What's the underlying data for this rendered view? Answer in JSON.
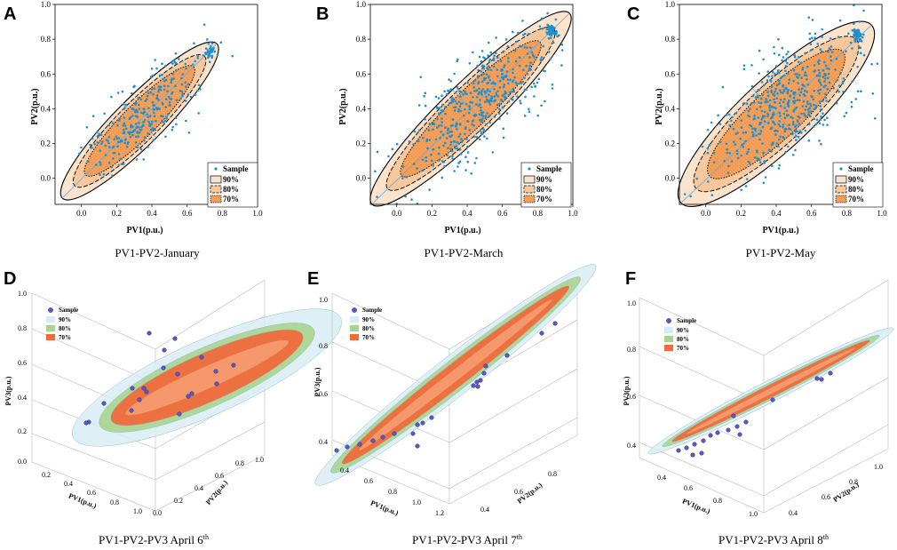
{
  "colors": {
    "sample2d": "#1f8fd0",
    "fill2d": "#f5a15a",
    "fill2dLight": "#fbe3cc",
    "axis": "#000000",
    "c3d90": "#d8ecf3",
    "c3d80": "#a9d48f",
    "c3d70": "#f06a3c",
    "sample3d": "#5757c8"
  },
  "chart_data": [
    {
      "id": "A",
      "type": "scatter",
      "panel_label": "A",
      "caption": "PV1-PV2-January",
      "xlabel": "PV1(p.u.)",
      "ylabel": "PV2(p.u.)",
      "xlim": [
        -0.15,
        1.0
      ],
      "ylim": [
        -0.15,
        1.0
      ],
      "xticks": [
        "0.0",
        "0.2",
        "0.4",
        "0.6",
        "0.8",
        "1.0"
      ],
      "yticks": [
        "0.0",
        "0.2",
        "0.4",
        "0.6",
        "0.8",
        "1.0"
      ],
      "xtick_vals": [
        0,
        0.2,
        0.4,
        0.6,
        0.8,
        1.0
      ],
      "ytick_vals": [
        0,
        0.2,
        0.4,
        0.6,
        0.8,
        1.0
      ],
      "ellipse": {
        "cx": 0.33,
        "cy": 0.33,
        "angle_deg": 45,
        "semi_major": 0.62,
        "semi_minor": 0.135
      },
      "legend": [
        "Sample",
        "90%",
        "80%",
        "70%"
      ],
      "samples": {
        "n": 320,
        "cx": 0.36,
        "cy": 0.36,
        "spread_main": 0.21,
        "spread_minor": 0.09,
        "seed": 11,
        "cluster": [
          0.73,
          0.74
        ]
      }
    },
    {
      "id": "B",
      "type": "scatter",
      "panel_label": "B",
      "caption": "PV1-PV2-March",
      "xlabel": "PV1(p.u.)",
      "ylabel": "PV2(p.u.)",
      "xlim": [
        -0.15,
        1.0
      ],
      "ylim": [
        -0.15,
        1.0
      ],
      "xticks": [
        "0.0",
        "0.2",
        "0.4",
        "0.6",
        "0.8",
        "1.0"
      ],
      "yticks": [
        "0.0",
        "0.2",
        "0.4",
        "0.6",
        "0.8",
        "1.0"
      ],
      "xtick_vals": [
        0,
        0.2,
        0.4,
        0.6,
        0.8,
        1.0
      ],
      "ytick_vals": [
        0,
        0.2,
        0.4,
        0.6,
        0.8,
        1.0
      ],
      "ellipse": {
        "cx": 0.42,
        "cy": 0.4,
        "angle_deg": 44,
        "semi_major": 0.78,
        "semi_minor": 0.15
      },
      "legend": [
        "Sample",
        "90%",
        "80%",
        "70%"
      ],
      "samples": {
        "n": 520,
        "cx": 0.45,
        "cy": 0.43,
        "spread_main": 0.27,
        "spread_minor": 0.11,
        "seed": 23,
        "cluster": [
          0.88,
          0.85
        ]
      }
    },
    {
      "id": "C",
      "type": "scatter",
      "panel_label": "C",
      "caption": "PV1-PV2-May",
      "xlabel": "PV1(p.u.)",
      "ylabel": "PV2(p.u.)",
      "xlim": [
        -0.15,
        1.0
      ],
      "ylim": [
        -0.15,
        1.0
      ],
      "xticks": [
        "0.0",
        "0.2",
        "0.4",
        "0.6",
        "0.8",
        "1.0"
      ],
      "yticks": [
        "0.0",
        "0.2",
        "0.4",
        "0.6",
        "0.8",
        "1.0"
      ],
      "xtick_vals": [
        0,
        0.2,
        0.4,
        0.6,
        0.8,
        1.0
      ],
      "ytick_vals": [
        0,
        0.2,
        0.4,
        0.6,
        0.8,
        1.0
      ],
      "ellipse": {
        "cx": 0.4,
        "cy": 0.37,
        "angle_deg": 43,
        "semi_major": 0.74,
        "semi_minor": 0.2
      },
      "legend": [
        "Sample",
        "90%",
        "80%",
        "70%"
      ],
      "samples": {
        "n": 560,
        "cx": 0.45,
        "cy": 0.42,
        "spread_main": 0.26,
        "spread_minor": 0.13,
        "seed": 37,
        "cluster": [
          0.86,
          0.82
        ]
      }
    },
    {
      "id": "D",
      "type": "scatter3d",
      "panel_label": "D",
      "caption_main": "PV1-PV2-PV3 April 6",
      "caption_sup": "th",
      "xlabel": "PV1(p.u.)",
      "ylabel": "PV2(p.u.)",
      "zlabel": "PV3(p.u.)",
      "zticks": [
        "0.0",
        "0.2",
        "0.4",
        "0.6",
        "0.8",
        "1.0"
      ],
      "xticks": [
        "0.2",
        "0.4",
        "0.6",
        "0.8",
        "1.0"
      ],
      "yticks": [
        "0.0",
        "0.2",
        "0.4",
        "0.6",
        "0.8",
        "1.0"
      ],
      "legend": [
        "Sample",
        "90%",
        "80%",
        "70%"
      ],
      "ellipsoid": {
        "cx": 233,
        "cy": 425,
        "angle_deg": -24,
        "r90": [
          165,
          42
        ],
        "r80": [
          132,
          33
        ],
        "r70": [
          118,
          27
        ]
      },
      "samples": [
        [
          168,
          375
        ],
        [
          197,
          381
        ],
        [
          185,
          394
        ],
        [
          149,
          437
        ],
        [
          162,
          437
        ],
        [
          165,
          441
        ],
        [
          216,
          443
        ],
        [
          243,
          418
        ],
        [
          263,
          411
        ],
        [
          244,
          432
        ],
        [
          212,
          446
        ],
        [
          148,
          462
        ],
        [
          202,
          466
        ],
        [
          100,
          475
        ],
        [
          117,
          454
        ],
        [
          97,
          476
        ],
        [
          184,
          414
        ],
        [
          200,
          421
        ],
        [
          227,
          402
        ],
        [
          157,
          450
        ]
      ]
    },
    {
      "id": "E",
      "type": "scatter3d",
      "panel_label": "E",
      "caption_main": "PV1-PV2-PV3 April 7",
      "caption_sup": "th",
      "xlabel": "PV1(p.u.)",
      "ylabel": "PV2(p.u.)",
      "zlabel": "PV3(p.u.)",
      "zticks": [
        "0.4",
        "0.6",
        "0.8",
        "1.0"
      ],
      "xticks": [
        "0.4",
        "0.6",
        "0.8",
        "1.0",
        "1.2"
      ],
      "yticks": [
        "0.4",
        "0.6",
        "0.8"
      ],
      "legend": [
        "Sample",
        "90%",
        "80%",
        "70%"
      ],
      "ellipsoid": {
        "cx": 513,
        "cy": 422,
        "angle_deg": -38,
        "r90": [
          200,
          22
        ],
        "r80": [
          178,
          17
        ],
        "r70": [
          162,
          13
        ]
      },
      "samples": [
        [
          379,
          507
        ],
        [
          391,
          503
        ],
        [
          405,
          500
        ],
        [
          420,
          496
        ],
        [
          431,
          492
        ],
        [
          444,
          488
        ],
        [
          470,
          478
        ],
        [
          476,
          476
        ],
        [
          486,
          470
        ],
        [
          533,
          434
        ],
        [
          537,
          430
        ],
        [
          538,
          435
        ],
        [
          541,
          428
        ],
        [
          545,
          420
        ],
        [
          547,
          412
        ],
        [
          571,
          400
        ],
        [
          610,
          375
        ],
        [
          625,
          364
        ],
        [
          470,
          502
        ],
        [
          465,
          488
        ]
      ]
    },
    {
      "id": "F",
      "type": "scatter3d",
      "panel_label": "F",
      "caption_main": "PV1-PV2-PV3 April 8",
      "caption_sup": "th",
      "xlabel": "PV1(p.u.)",
      "ylabel": "PV2(p.u.)",
      "zlabel": "PV3(p.u.)",
      "zticks": [
        "0.4",
        "0.6",
        "0.8",
        "1.0"
      ],
      "xticks": [
        "0.4",
        "0.6",
        "0.8",
        "1.0"
      ],
      "yticks": [
        "0.4",
        "0.6",
        "0.8",
        "1.0"
      ],
      "legend": [
        "Sample",
        "90%",
        "80%",
        "70%"
      ],
      "ellipsoid": {
        "cx": 868,
        "cy": 440,
        "angle_deg": -27,
        "r90": [
          155,
          12
        ],
        "r80": [
          137,
          9
        ],
        "r70": [
          125,
          7
        ]
      },
      "samples": [
        [
          764,
          507
        ],
        [
          773,
          504
        ],
        [
          782,
          500
        ],
        [
          792,
          496
        ],
        [
          800,
          490
        ],
        [
          808,
          487
        ],
        [
          820,
          484
        ],
        [
          830,
          480
        ],
        [
          840,
          475
        ],
        [
          780,
          512
        ],
        [
          790,
          510
        ],
        [
          826,
          468
        ],
        [
          833,
          489
        ],
        [
          870,
          450
        ],
        [
          920,
          426
        ],
        [
          925,
          427
        ],
        [
          935,
          420
        ]
      ]
    }
  ]
}
